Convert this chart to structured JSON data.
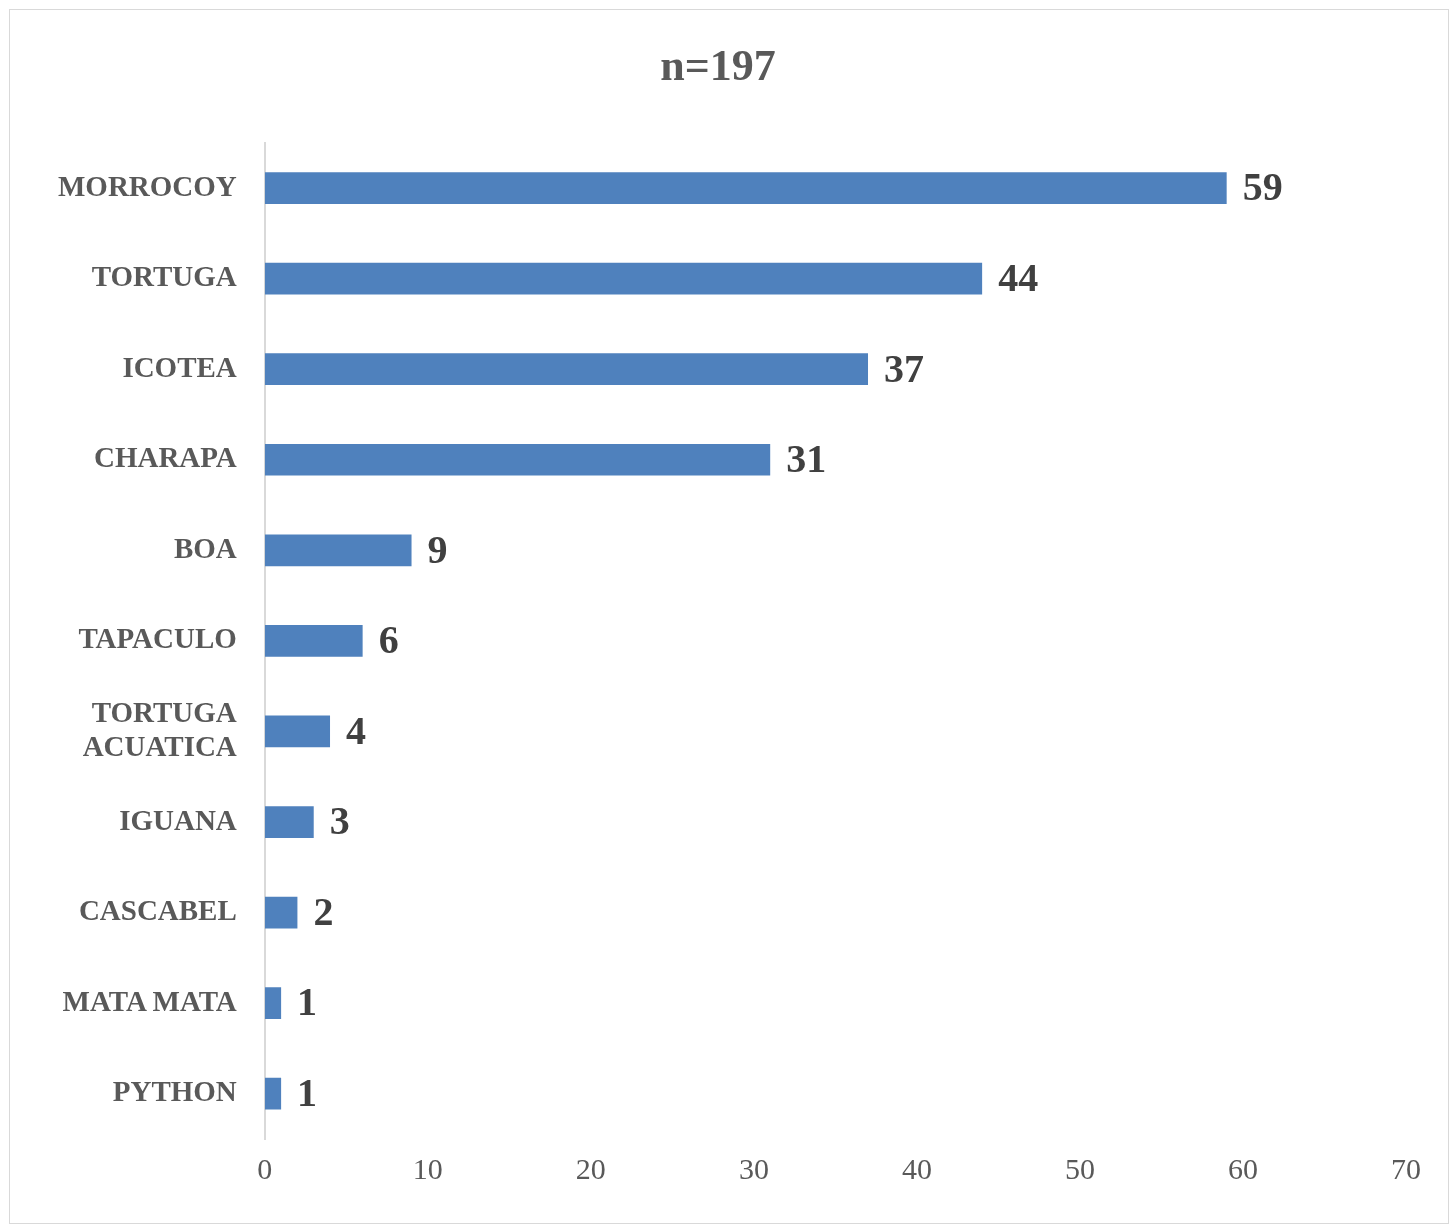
{
  "chart_data": {
    "type": "bar",
    "orientation": "horizontal",
    "title": "n=197",
    "categories": [
      "MORROCOY",
      "TORTUGA",
      "ICOTEA",
      "CHARAPA",
      "BOA",
      "TAPACULO",
      "TORTUGA ACUATICA",
      "IGUANA",
      "CASCABEL",
      "MATA MATA",
      "PYTHON"
    ],
    "values": [
      59,
      44,
      37,
      31,
      9,
      6,
      4,
      3,
      2,
      1,
      1
    ],
    "color": "#4f81bd",
    "xlim": [
      0,
      70
    ],
    "xticks": [
      0,
      10,
      20,
      30,
      40,
      50,
      60,
      70
    ],
    "data_labels": true,
    "legend": false,
    "grid": false
  }
}
